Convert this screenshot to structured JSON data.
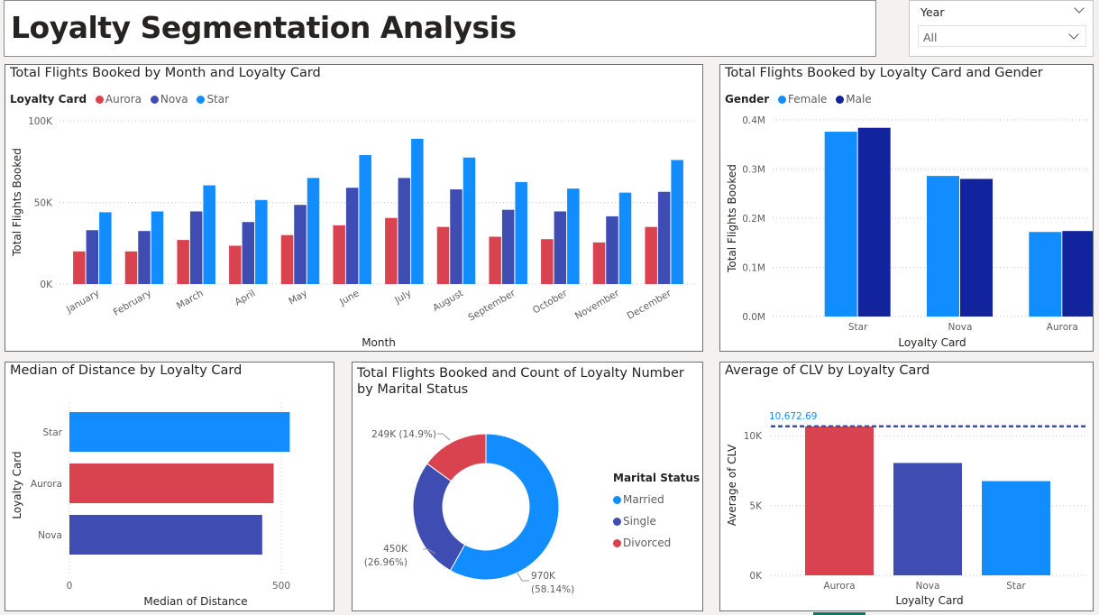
{
  "page": {
    "title": "Loyalty Segmentation Analysis"
  },
  "slicer": {
    "title": "Year",
    "value": "All"
  },
  "colors": {
    "aurora": "#d9434f",
    "nova": "#3f4db2",
    "star": "#118dff",
    "female": "#118dff",
    "male": "#12239e",
    "married": "#118dff",
    "single": "#3f4db2",
    "divorced": "#d9434f"
  },
  "chart_data": [
    {
      "id": "monthly",
      "type": "bar",
      "title": "Total Flights Booked by Month and Loyalty Card",
      "legend_title": "Loyalty Card",
      "xlabel": "Month",
      "ylabel": "Total Flights Booked",
      "ylim": [
        0,
        100000
      ],
      "yticks": [
        "0K",
        "50K",
        "100K"
      ],
      "categories": [
        "January",
        "February",
        "March",
        "April",
        "May",
        "June",
        "July",
        "August",
        "September",
        "October",
        "November",
        "December"
      ],
      "series": [
        {
          "name": "Aurora",
          "values": [
            20000,
            20000,
            27000,
            23500,
            30000,
            36000,
            40500,
            35000,
            29000,
            27500,
            25500,
            35000
          ]
        },
        {
          "name": "Nova",
          "values": [
            33000,
            32500,
            44500,
            38000,
            48500,
            59000,
            65000,
            58000,
            45500,
            44500,
            41500,
            56500
          ]
        },
        {
          "name": "Star",
          "values": [
            44000,
            44500,
            60500,
            51500,
            65000,
            79000,
            89000,
            77500,
            62500,
            58500,
            56000,
            76000
          ]
        }
      ]
    },
    {
      "id": "gender",
      "type": "bar",
      "title": "Total Flights Booked by Loyalty Card and Gender",
      "legend_title": "Gender",
      "xlabel": "Loyalty Card",
      "ylabel": "Total Flights Booked",
      "ylim": [
        0,
        400000
      ],
      "yticks": [
        "0.0M",
        "0.1M",
        "0.2M",
        "0.3M",
        "0.4M"
      ],
      "categories": [
        "Star",
        "Nova",
        "Aurora"
      ],
      "series": [
        {
          "name": "Female",
          "values": [
            376000,
            286000,
            172000
          ]
        },
        {
          "name": "Male",
          "values": [
            384000,
            280000,
            174000
          ]
        }
      ]
    },
    {
      "id": "distance",
      "type": "bar",
      "orientation": "horizontal",
      "title": "Median of Distance by Loyalty Card",
      "xlabel": "Median of Distance",
      "ylabel": "Loyalty Card",
      "xlim": [
        0,
        550
      ],
      "xticks": [
        "0",
        "500"
      ],
      "categories": [
        "Star",
        "Aurora",
        "Nova"
      ],
      "values": [
        520,
        482,
        455
      ]
    },
    {
      "id": "marital",
      "type": "pie",
      "title": "Total Flights Booked and Count of Loyalty Number by Marital Status",
      "legend_title": "Marital Status",
      "categories": [
        "Married",
        "Single",
        "Divorced"
      ],
      "values": [
        970000,
        450000,
        249000
      ],
      "labels": [
        {
          "value": "970K",
          "pct": "(58.14%)"
        },
        {
          "value": "450K",
          "pct": "(26.96%)"
        },
        {
          "value": "249K (14.9%)",
          "pct": ""
        }
      ]
    },
    {
      "id": "clv",
      "type": "bar",
      "title": "Average of CLV by Loyalty Card",
      "xlabel": "Loyalty Card",
      "ylabel": "Average of CLV",
      "ylim": [
        0,
        11500
      ],
      "yticks": [
        "0K",
        "5K",
        "10K"
      ],
      "categories": [
        "Aurora",
        "Nova",
        "Star"
      ],
      "values": [
        10672.69,
        8050,
        6750
      ],
      "reference_line": {
        "value": 10672.69,
        "label": "10,672.69"
      }
    }
  ]
}
